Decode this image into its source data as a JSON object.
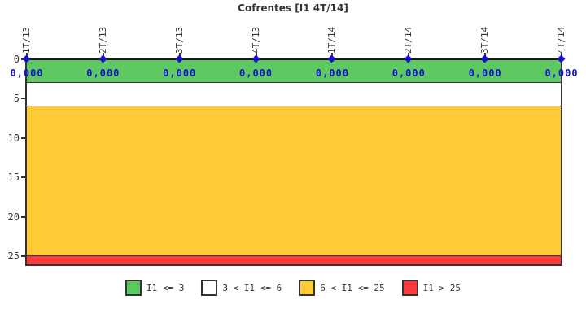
{
  "title": "Cofrentes [I1 4T/14]",
  "colors": {
    "green": "#5FC863",
    "white": "#FFFFFF",
    "yellow": "#FCCB35",
    "red": "#FA3B3B",
    "frame": "#333333",
    "axis_line": "#1A1A1A",
    "text": "#333333",
    "value_blue": "#1212CE"
  },
  "chart_data": {
    "type": "line",
    "title": "Cofrentes [I1 4T/14]",
    "categories": [
      "1T/13",
      "2T/13",
      "3T/13",
      "4T/13",
      "1T/14",
      "2T/14",
      "3T/14",
      "4T/14"
    ],
    "series": [
      {
        "name": "I1",
        "values": [
          0,
          0,
          0,
          0,
          0,
          0,
          0,
          0
        ]
      }
    ],
    "point_labels": [
      "0,000",
      "0,000",
      "0,000",
      "0,000",
      "0,000",
      "0,000",
      "0,000",
      "0,000"
    ],
    "xlabel": "",
    "ylabel": "",
    "y_axis": {
      "ticks": [
        0,
        5,
        10,
        15,
        20,
        25
      ],
      "min": 0,
      "max": 26,
      "inverted": true
    },
    "x_axis_position": "top",
    "grid": false,
    "legend_position": "bottom",
    "bands": [
      {
        "label": "I1 <= 3",
        "from": 0,
        "to": 3,
        "color_key": "green"
      },
      {
        "label": "3 < I1 <= 6",
        "from": 3,
        "to": 6,
        "color_key": "white"
      },
      {
        "label": "6 < I1 <= 25",
        "from": 6,
        "to": 25,
        "color_key": "yellow"
      },
      {
        "label": "I1 > 25",
        "from": 25,
        "to": 26,
        "color_key": "red"
      }
    ]
  },
  "legend": {
    "items": [
      {
        "label": "I1 <= 3",
        "color_key": "green"
      },
      {
        "label": "3 < I1 <= 6",
        "color_key": "white"
      },
      {
        "label": "6 < I1 <= 25",
        "color_key": "yellow"
      },
      {
        "label": "I1 > 25",
        "color_key": "red"
      }
    ]
  }
}
